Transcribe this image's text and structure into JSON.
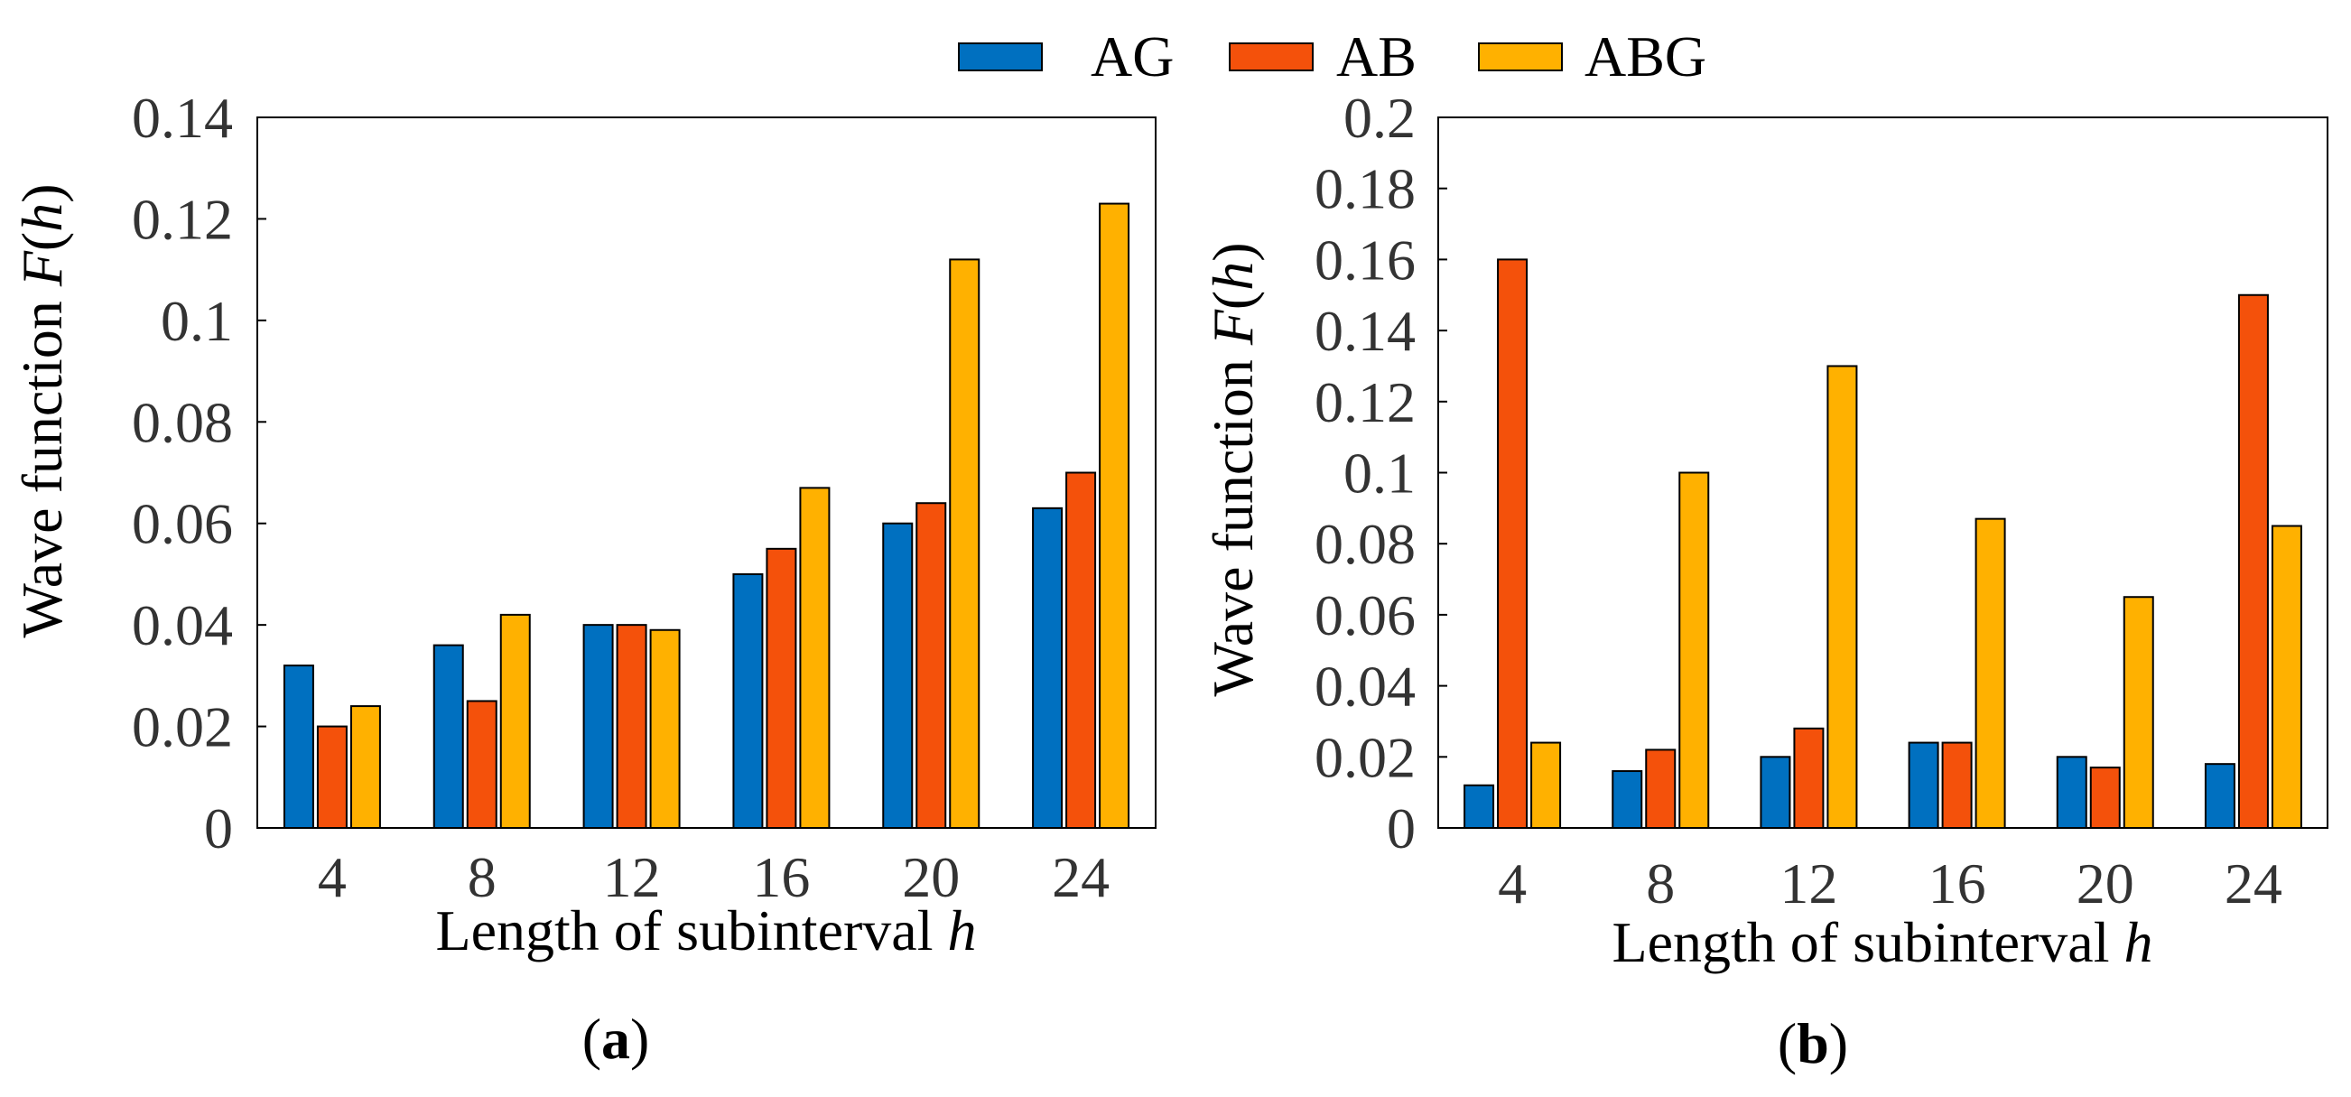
{
  "colors": {
    "AG": "#0070C0",
    "AB": "#F4510B",
    "ABG": "#FFB100"
  },
  "legend": {
    "items": [
      {
        "name": "AG",
        "color": "#0070C0"
      },
      {
        "name": "AB",
        "color": "#F4510B"
      },
      {
        "name": "ABG",
        "color": "#FFB100"
      }
    ]
  },
  "chart_data": [
    {
      "type": "bar",
      "panel": "a",
      "caption": "a",
      "categories": [
        "4",
        "8",
        "12",
        "16",
        "20",
        "24"
      ],
      "series": [
        {
          "name": "AG",
          "values": [
            0.032,
            0.036,
            0.04,
            0.05,
            0.06,
            0.063
          ]
        },
        {
          "name": "AB",
          "values": [
            0.02,
            0.025,
            0.04,
            0.055,
            0.064,
            0.07
          ]
        },
        {
          "name": "ABG",
          "values": [
            0.024,
            0.042,
            0.039,
            0.067,
            0.112,
            0.123
          ]
        }
      ],
      "xlabel_prefix": "Length of subinterval ",
      "xlabel_var": "h",
      "ylabel_prefix": "Wave function ",
      "ylabel_var_F": "F",
      "ylabel_open": "(",
      "ylabel_var_h": "h",
      "ylabel_close": ")",
      "ylim": [
        0,
        0.14
      ],
      "yticks": [
        0,
        0.02,
        0.04,
        0.06,
        0.08,
        0.1,
        0.12,
        0.14
      ],
      "ytick_labels": [
        "0",
        "0.02",
        "0.04",
        "0.06",
        "0.08",
        "0.1",
        "0.12",
        "0.14"
      ],
      "grid": false
    },
    {
      "type": "bar",
      "panel": "b",
      "caption": "b",
      "categories": [
        "4",
        "8",
        "12",
        "16",
        "20",
        "24"
      ],
      "series": [
        {
          "name": "AG",
          "values": [
            0.012,
            0.016,
            0.02,
            0.024,
            0.02,
            0.018
          ]
        },
        {
          "name": "AB",
          "values": [
            0.16,
            0.022,
            0.028,
            0.024,
            0.017,
            0.15
          ]
        },
        {
          "name": "ABG",
          "values": [
            0.024,
            0.1,
            0.13,
            0.087,
            0.065,
            0.085
          ]
        }
      ],
      "xlabel_prefix": "Length of subinterval ",
      "xlabel_var": "h",
      "ylabel_prefix": "Wave function ",
      "ylabel_var_F": "F",
      "ylabel_open": "(",
      "ylabel_var_h": "h",
      "ylabel_close": ")",
      "ylim": [
        0,
        0.2
      ],
      "yticks": [
        0,
        0.02,
        0.04,
        0.06,
        0.08,
        0.1,
        0.12,
        0.14,
        0.16,
        0.18,
        0.2
      ],
      "ytick_labels": [
        "0",
        "0.02",
        "0.04",
        "0.06",
        "0.08",
        "0.1",
        "0.12",
        "0.14",
        "0.16",
        "0.18",
        "0.2"
      ],
      "grid": false
    }
  ]
}
